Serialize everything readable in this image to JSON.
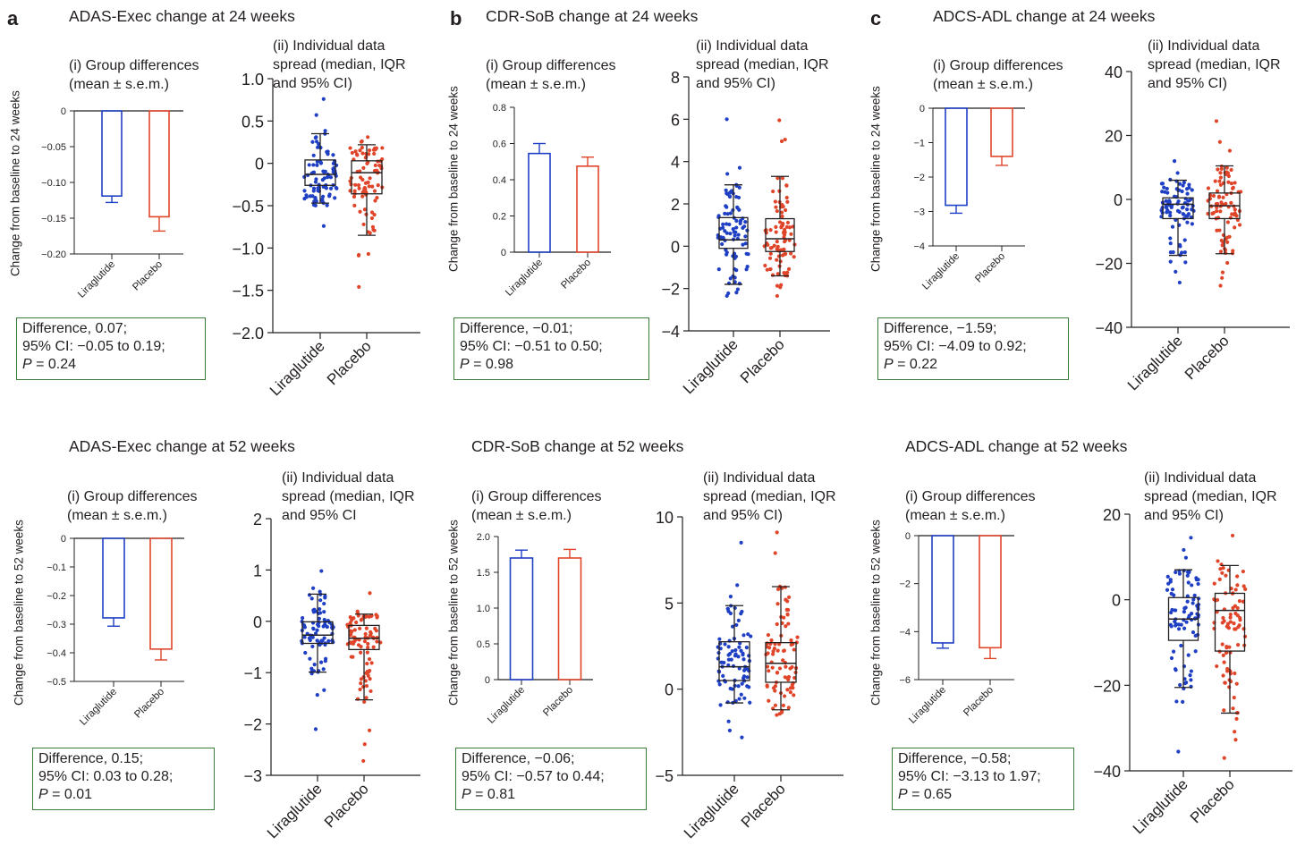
{
  "colors": {
    "liraglutide": "#1f3fc4",
    "placebo": "#e0452a",
    "box_border": "#3a7d3a",
    "axis": "#231f20"
  },
  "chart_data": [
    {
      "id": "a24",
      "panel_letter": "a",
      "title": "ADAS-Exec change at 24 weeks",
      "bar": {
        "type": "bar",
        "subtitle": "(i) Group differences\n(mean ± s.e.m.)",
        "ylabel": "Change from baseline to 24 weeks",
        "categories": [
          "Liraglutide",
          "Placebo"
        ],
        "ylim": [
          -0.2,
          0
        ],
        "yticks": [
          0,
          -0.05,
          -0.1,
          -0.15,
          -0.2
        ],
        "ytick_labels": [
          "0",
          "−0.05",
          "−0.10",
          "−0.15",
          "−0.20"
        ],
        "values": [
          -0.119,
          -0.148
        ],
        "sem": [
          0.009,
          0.02
        ]
      },
      "box": {
        "type": "box-scatter",
        "subtitle": "(ii) Individual data\nspread (median, IQR\nand 95% CI)",
        "categories": [
          "Liraglutide",
          "Placebo"
        ],
        "ylim": [
          -2.0,
          1.0
        ],
        "yticks": [
          1.0,
          0.5,
          0,
          -0.5,
          -1.0,
          -1.5,
          -2.0
        ],
        "ytick_labels": [
          "1.0",
          "0.5",
          "0",
          "−0.5",
          "−1.0",
          "−1.5",
          "−2.0"
        ],
        "groups": [
          {
            "name": "Liraglutide",
            "median": -0.13,
            "q1": -0.26,
            "q3": 0.04,
            "whisker_low": -0.47,
            "whisker_high": 0.35,
            "min": -0.74,
            "max": 0.76
          },
          {
            "name": "Placebo",
            "median": -0.11,
            "q1": -0.36,
            "q3": 0.03,
            "whisker_low": -0.85,
            "whisker_high": 0.22,
            "min": -1.46,
            "max": 0.31
          }
        ]
      },
      "stats": {
        "line1": "Difference, 0.07;",
        "line2": "95% CI: −0.05 to 0.19;",
        "p_label": "P",
        "p_value": " = 0.24"
      }
    },
    {
      "id": "b24",
      "panel_letter": "b",
      "title": "CDR-SoB change at 24 weeks",
      "bar": {
        "type": "bar",
        "subtitle": "(i) Group differences\n(mean ± s.e.m.)",
        "ylabel": "Change from baseline to 24 weeks",
        "categories": [
          "Liraglutide",
          "Placebo"
        ],
        "ylim": [
          0,
          0.8
        ],
        "yticks": [
          0.8,
          0.6,
          0.4,
          0.2,
          0
        ],
        "ytick_labels": [
          "0.8",
          "0.6",
          "0.4",
          "0.2",
          "0"
        ],
        "values": [
          0.545,
          0.475
        ],
        "sem": [
          0.055,
          0.05
        ]
      },
      "box": {
        "type": "box-scatter",
        "subtitle": "(ii) Individual data\nspread (median, IQR\nand 95% CI)",
        "categories": [
          "Liraglutide",
          "Placebo"
        ],
        "ylim": [
          -4,
          8
        ],
        "yticks": [
          8,
          6,
          4,
          2,
          0,
          -2,
          -4
        ],
        "ytick_labels": [
          "8",
          "6",
          "4",
          "2",
          "0",
          "−2",
          "−4"
        ],
        "groups": [
          {
            "name": "Liraglutide",
            "median": 0.3,
            "q1": -0.1,
            "q3": 1.35,
            "whisker_low": -1.8,
            "whisker_high": 2.9,
            "min": -2.35,
            "max": 6.0
          },
          {
            "name": "Placebo",
            "median": 0.35,
            "q1": -0.25,
            "q3": 1.3,
            "whisker_low": -1.4,
            "whisker_high": 3.3,
            "min": -2.35,
            "max": 5.95
          }
        ]
      },
      "stats": {
        "line1": "Difference, −0.01;",
        "line2": "95% CI: −0.51 to 0.50;",
        "p_label": "P",
        "p_value": " = 0.98"
      }
    },
    {
      "id": "c24",
      "panel_letter": "c",
      "title": "ADCS-ADL change at 24 weeks",
      "bar": {
        "type": "bar",
        "subtitle": "(i) Group differences\n(mean ± s.e.m.)",
        "ylabel": "Change from baseline to 24 weeks",
        "categories": [
          "Liraglutide",
          "Placebo"
        ],
        "ylim": [
          -4,
          0
        ],
        "yticks": [
          0,
          -1,
          -2,
          -3,
          -4
        ],
        "ytick_labels": [
          "0",
          "−1",
          "−2",
          "−3",
          "−4"
        ],
        "values": [
          -2.82,
          -1.4
        ],
        "sem": [
          0.23,
          0.26
        ]
      },
      "box": {
        "type": "box-scatter",
        "subtitle": "(ii) Individual data\nspread (median, IQR\nand 95% CI)",
        "categories": [
          "Liraglutide",
          "Placebo"
        ],
        "ylim": [
          -40,
          40
        ],
        "yticks": [
          40,
          20,
          0,
          -20,
          -40
        ],
        "ytick_labels": [
          "40",
          "20",
          "0",
          "−20",
          "−40"
        ],
        "groups": [
          {
            "name": "Liraglutide",
            "median": -1.5,
            "q1": -6.0,
            "q3": 0.5,
            "whisker_low": -17.5,
            "whisker_high": 6.0,
            "min": -26.0,
            "max": 12.0
          },
          {
            "name": "Placebo",
            "median": -2.0,
            "q1": -6.0,
            "q3": 2.0,
            "whisker_low": -17.0,
            "whisker_high": 10.5,
            "min": -27.0,
            "max": 24.5
          }
        ]
      },
      "stats": {
        "line1": "Difference, −1.59;",
        "line2": "95% CI: −4.09 to 0.92;",
        "p_label": "P",
        "p_value": " = 0.22"
      }
    },
    {
      "id": "a52",
      "panel_letter": "",
      "title": "ADAS-Exec change at 52 weeks",
      "bar": {
        "type": "bar",
        "subtitle": "(i) Group differences\n(mean ± s.e.m.)",
        "ylabel": "Change from baseline to 52 weeks",
        "categories": [
          "Liraglutide",
          "Placebo"
        ],
        "ylim": [
          -0.5,
          0
        ],
        "yticks": [
          0,
          -0.1,
          -0.2,
          -0.3,
          -0.4,
          -0.5
        ],
        "ytick_labels": [
          "0",
          "−0.1",
          "−0.2",
          "−0.3",
          "−0.4",
          "−0.5"
        ],
        "values": [
          -0.278,
          -0.387
        ],
        "sem": [
          0.029,
          0.038
        ]
      },
      "box": {
        "type": "box-scatter",
        "subtitle": "(ii) Individual data\nspread (median, IQR\nand 95% CI",
        "categories": [
          "Liraglutide",
          "Placebo"
        ],
        "ylim": [
          -3,
          2
        ],
        "yticks": [
          2,
          1,
          0,
          -1,
          -2,
          -3
        ],
        "ytick_labels": [
          "2",
          "1",
          "0",
          "−1",
          "−2",
          "−3"
        ],
        "groups": [
          {
            "name": "Liraglutide",
            "median": -0.27,
            "q1": -0.43,
            "q3": -0.01,
            "whisker_low": -0.99,
            "whisker_high": 0.53,
            "min": -2.1,
            "max": 0.98
          },
          {
            "name": "Placebo",
            "median": -0.33,
            "q1": -0.55,
            "q3": -0.08,
            "whisker_low": -1.53,
            "whisker_high": 0.14,
            "min": -2.72,
            "max": 0.55
          }
        ]
      },
      "stats": {
        "line1": "Difference, 0.15;",
        "line2": "95% CI: 0.03 to 0.28;",
        "p_label": "P",
        "p_value": " = 0.01"
      }
    },
    {
      "id": "b52",
      "panel_letter": "",
      "title": "CDR-SoB change at 52 weeks",
      "bar": {
        "type": "bar",
        "subtitle": "(i) Group differences\n(mean ± s.e.m.)",
        "ylabel": "Change from baseline to 52 weeks",
        "categories": [
          "Liraglutide",
          "Placebo"
        ],
        "ylim": [
          0,
          2.0
        ],
        "yticks": [
          2.0,
          1.5,
          1.0,
          0.5,
          0
        ],
        "ytick_labels": [
          "2.0",
          "1.5",
          "1.0",
          "0.5",
          "0"
        ],
        "values": [
          1.7,
          1.7
        ],
        "sem": [
          0.11,
          0.12
        ]
      },
      "box": {
        "type": "box-scatter",
        "subtitle": "(ii) Individual data\nspread (median, IQR\nand 95% CI)",
        "categories": [
          "Liraglutide",
          "Placebo"
        ],
        "ylim": [
          -5,
          10
        ],
        "yticks": [
          10,
          5,
          0,
          -5
        ],
        "ytick_labels": [
          "10",
          "5",
          "0",
          "−5"
        ],
        "groups": [
          {
            "name": "Liraglutide",
            "median": 1.3,
            "q1": 0.5,
            "q3": 2.75,
            "whisker_low": -0.8,
            "whisker_high": 4.85,
            "min": -2.8,
            "max": 8.5
          },
          {
            "name": "Placebo",
            "median": 1.5,
            "q1": 0.4,
            "q3": 2.7,
            "whisker_low": -1.2,
            "whisker_high": 5.95,
            "min": -1.5,
            "max": 9.1
          }
        ]
      },
      "stats": {
        "line1": "Difference, −0.06;",
        "line2": "95% CI: −0.57 to 0.44;",
        "p_label": "P",
        "p_value": " = 0.81"
      }
    },
    {
      "id": "c52",
      "panel_letter": "",
      "title": "ADCS-ADL change at 52 weeks",
      "bar": {
        "type": "bar",
        "subtitle": "(i) Group differences\n(mean ± s.e.m.)",
        "ylabel": "Change from baseline to 52 weeks",
        "categories": [
          "Liraglutide",
          "Placebo"
        ],
        "ylim": [
          -6,
          0
        ],
        "yticks": [
          0,
          -2,
          -4,
          -6
        ],
        "ytick_labels": [
          "0",
          "−2",
          "−4",
          "−6"
        ],
        "values": [
          -4.47,
          -4.67
        ],
        "sem": [
          0.22,
          0.45
        ]
      },
      "box": {
        "type": "box-scatter",
        "subtitle": "(ii) Individual data\nspread (median, IQR\nand 95% CI)",
        "categories": [
          "Liraglutide",
          "Placebo"
        ],
        "ylim": [
          -40,
          20
        ],
        "yticks": [
          20,
          0,
          -20,
          -40
        ],
        "ytick_labels": [
          "20",
          "0",
          "−20",
          "−40"
        ],
        "groups": [
          {
            "name": "Liraglutide",
            "median": -4.5,
            "q1": -9.5,
            "q3": 0.5,
            "whisker_low": -20.5,
            "whisker_high": 7.0,
            "min": -35.5,
            "max": 14.5
          },
          {
            "name": "Placebo",
            "median": -2.5,
            "q1": -12.0,
            "q3": 1.5,
            "whisker_low": -26.5,
            "whisker_high": 8.0,
            "min": -37.0,
            "max": 15.0
          }
        ]
      },
      "stats": {
        "line1": "Difference, −0.58;",
        "line2": "95% CI: −3.13 to 1.97;",
        "p_label": "P",
        "p_value": " = 0.65"
      }
    }
  ]
}
